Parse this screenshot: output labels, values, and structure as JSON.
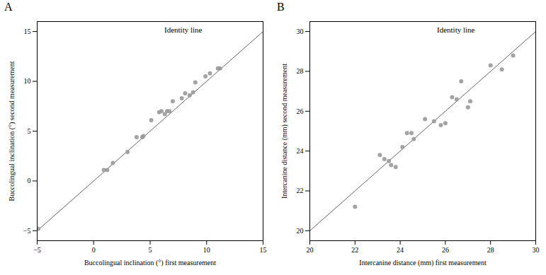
{
  "chart_data": [
    {
      "type": "scatter",
      "title": "A",
      "xlabel": "Buccolingual inclination (°) first measurement",
      "ylabel": "Buccolingual inclination (°) second measurement",
      "annotations": [
        "Identity line"
      ],
      "xlim": [
        -5,
        15
      ],
      "ylim": [
        -6,
        16
      ],
      "xticks": [
        -5,
        0,
        5,
        10,
        15
      ],
      "yticks": [
        -5,
        0,
        5,
        10,
        15
      ],
      "series": [
        {
          "type": "line",
          "color": "#666666",
          "x": [
            -5,
            15
          ],
          "values": [
            -5,
            15
          ]
        },
        {
          "type": "scatter",
          "color": "#999999",
          "x": [
            -4.9,
            0.9,
            1.2,
            1.7,
            3.0,
            3.8,
            4.3,
            4.4,
            5.1,
            5.8,
            6.0,
            6.3,
            6.5,
            6.7,
            7.0,
            7.8,
            8.1,
            8.5,
            8.8,
            9.0,
            9.9,
            10.3,
            11.0,
            11.2
          ],
          "values": [
            -4.8,
            1.1,
            1.1,
            1.8,
            2.9,
            4.4,
            4.4,
            4.5,
            6.1,
            6.9,
            7.0,
            6.7,
            7.0,
            7.0,
            8.0,
            8.3,
            8.8,
            8.6,
            8.9,
            9.9,
            10.5,
            10.8,
            11.3,
            11.3
          ]
        }
      ]
    },
    {
      "type": "scatter",
      "title": "B",
      "xlabel": "Intercanine distance (mm) first measurement",
      "ylabel": "Intercanine distance (mm) second measurement",
      "annotations": [
        "Identity line"
      ],
      "xlim": [
        20,
        30
      ],
      "ylim": [
        19.5,
        30.5
      ],
      "xticks": [
        20,
        22,
        24,
        26,
        28,
        30
      ],
      "yticks": [
        20,
        22,
        24,
        26,
        28,
        30
      ],
      "series": [
        {
          "type": "line",
          "color": "#666666",
          "x": [
            20,
            30
          ],
          "values": [
            20,
            30
          ]
        },
        {
          "type": "scatter",
          "color": "#999999",
          "x": [
            22.0,
            23.1,
            23.3,
            23.5,
            23.6,
            23.8,
            24.1,
            24.3,
            24.5,
            24.6,
            25.1,
            25.5,
            25.8,
            26.0,
            26.3,
            26.5,
            26.7,
            27.0,
            27.1,
            28.0,
            28.5,
            29.0
          ],
          "values": [
            21.2,
            23.8,
            23.6,
            23.5,
            23.3,
            23.2,
            24.2,
            24.9,
            24.9,
            24.6,
            25.6,
            25.5,
            25.3,
            25.4,
            26.7,
            26.6,
            27.5,
            26.2,
            26.5,
            28.3,
            28.1,
            28.8
          ]
        }
      ]
    }
  ]
}
